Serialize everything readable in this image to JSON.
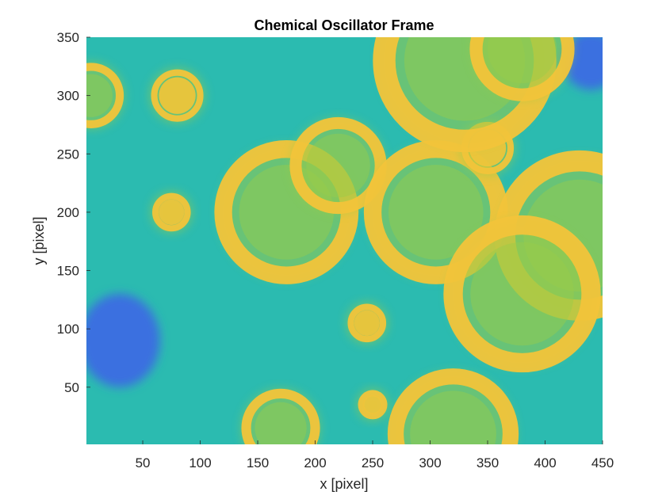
{
  "chart_data": {
    "type": "heatmap",
    "title": "Chemical Oscillator Frame",
    "xlabel": "x [pixel]",
    "ylabel": "y [pixel]",
    "xlim": [
      1,
      450
    ],
    "ylim": [
      1,
      350
    ],
    "xticks": [
      50,
      100,
      150,
      200,
      250,
      300,
      350,
      400,
      450
    ],
    "yticks": [
      50,
      100,
      150,
      200,
      250,
      300,
      350
    ],
    "grid": false,
    "colormap": "parula",
    "colors": {
      "background": "#2bbbb0",
      "low": "#3b6fe0",
      "deep": "#2a2fb0",
      "high": "#f2c43a",
      "mid": "#9acb4a"
    },
    "spots": [
      {
        "cx": 80,
        "cy": 300,
        "r": 20
      },
      {
        "cx": 175,
        "cy": 200,
        "r": 55
      },
      {
        "cx": 220,
        "cy": 240,
        "r": 37
      },
      {
        "cx": 305,
        "cy": 200,
        "r": 55
      },
      {
        "cx": 350,
        "cy": 255,
        "r": 20
      },
      {
        "cx": 75,
        "cy": 200,
        "r": 14
      },
      {
        "cx": 430,
        "cy": 180,
        "r": 65
      },
      {
        "cx": 380,
        "cy": 130,
        "r": 60
      },
      {
        "cx": 245,
        "cy": 105,
        "r": 14
      },
      {
        "cx": 250,
        "cy": 35,
        "r": 10
      },
      {
        "cx": 170,
        "cy": 15,
        "r": 30
      },
      {
        "cx": 320,
        "cy": 10,
        "r": 50
      },
      {
        "cx": 330,
        "cy": 330,
        "r": 70
      },
      {
        "cx": 380,
        "cy": 340,
        "r": 40
      },
      {
        "cx": 5,
        "cy": 300,
        "r": 25
      }
    ],
    "low_regions": [
      {
        "cx": 30,
        "cy": 90,
        "rx": 35,
        "ry": 40
      },
      {
        "cx": 440,
        "cy": 330,
        "rx": 25,
        "ry": 25
      }
    ]
  }
}
